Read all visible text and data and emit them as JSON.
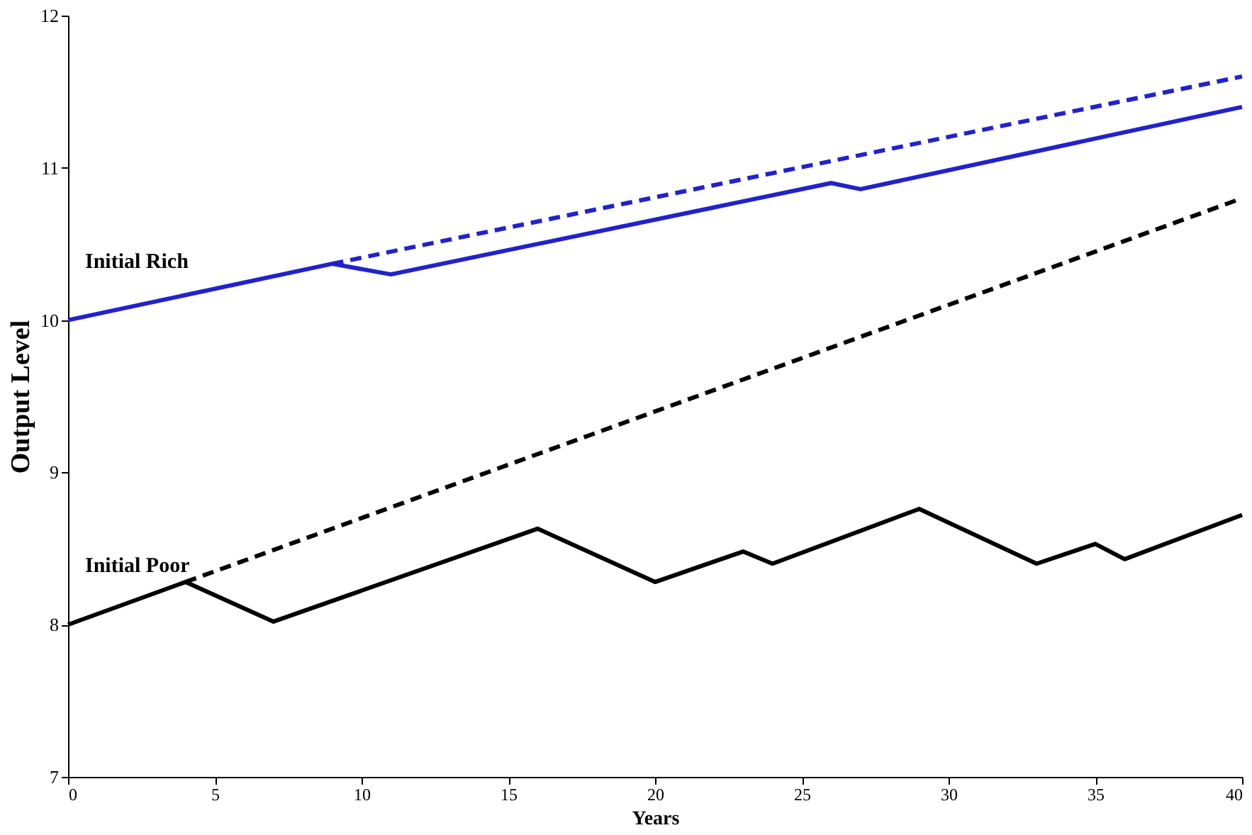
{
  "chart_data": {
    "type": "line",
    "xlabel": "Years",
    "ylabel": "Output Level",
    "xlim": [
      0,
      40
    ],
    "ylim": [
      7,
      12
    ],
    "xticks": [
      0,
      5,
      10,
      15,
      20,
      25,
      30,
      35,
      40
    ],
    "yticks": [
      7,
      8,
      9,
      10,
      11,
      12
    ],
    "grid": false,
    "marker": "none",
    "series": [
      {
        "name": "Initial Rich",
        "color": "#2222cc",
        "line_style": "solid",
        "x": [
          0,
          9,
          11,
          26,
          27,
          40
        ],
        "values": [
          10.0,
          10.37,
          10.3,
          10.9,
          10.86,
          11.4
        ]
      },
      {
        "color": "#2222cc",
        "line_style": "dashed",
        "x": [
          9,
          40
        ],
        "values": [
          10.37,
          11.6
        ]
      },
      {
        "name": "Initial Poor",
        "color": "#000000",
        "line_style": "solid",
        "x": [
          0,
          4,
          7,
          16,
          20,
          23,
          24,
          29,
          33,
          35,
          36,
          40
        ],
        "values": [
          8.0,
          8.28,
          8.02,
          8.63,
          8.28,
          8.48,
          8.4,
          8.76,
          8.4,
          8.53,
          8.43,
          8.72
        ]
      },
      {
        "color": "#000000",
        "line_style": "dashed",
        "x": [
          4,
          40
        ],
        "values": [
          8.28,
          10.8
        ]
      }
    ]
  }
}
